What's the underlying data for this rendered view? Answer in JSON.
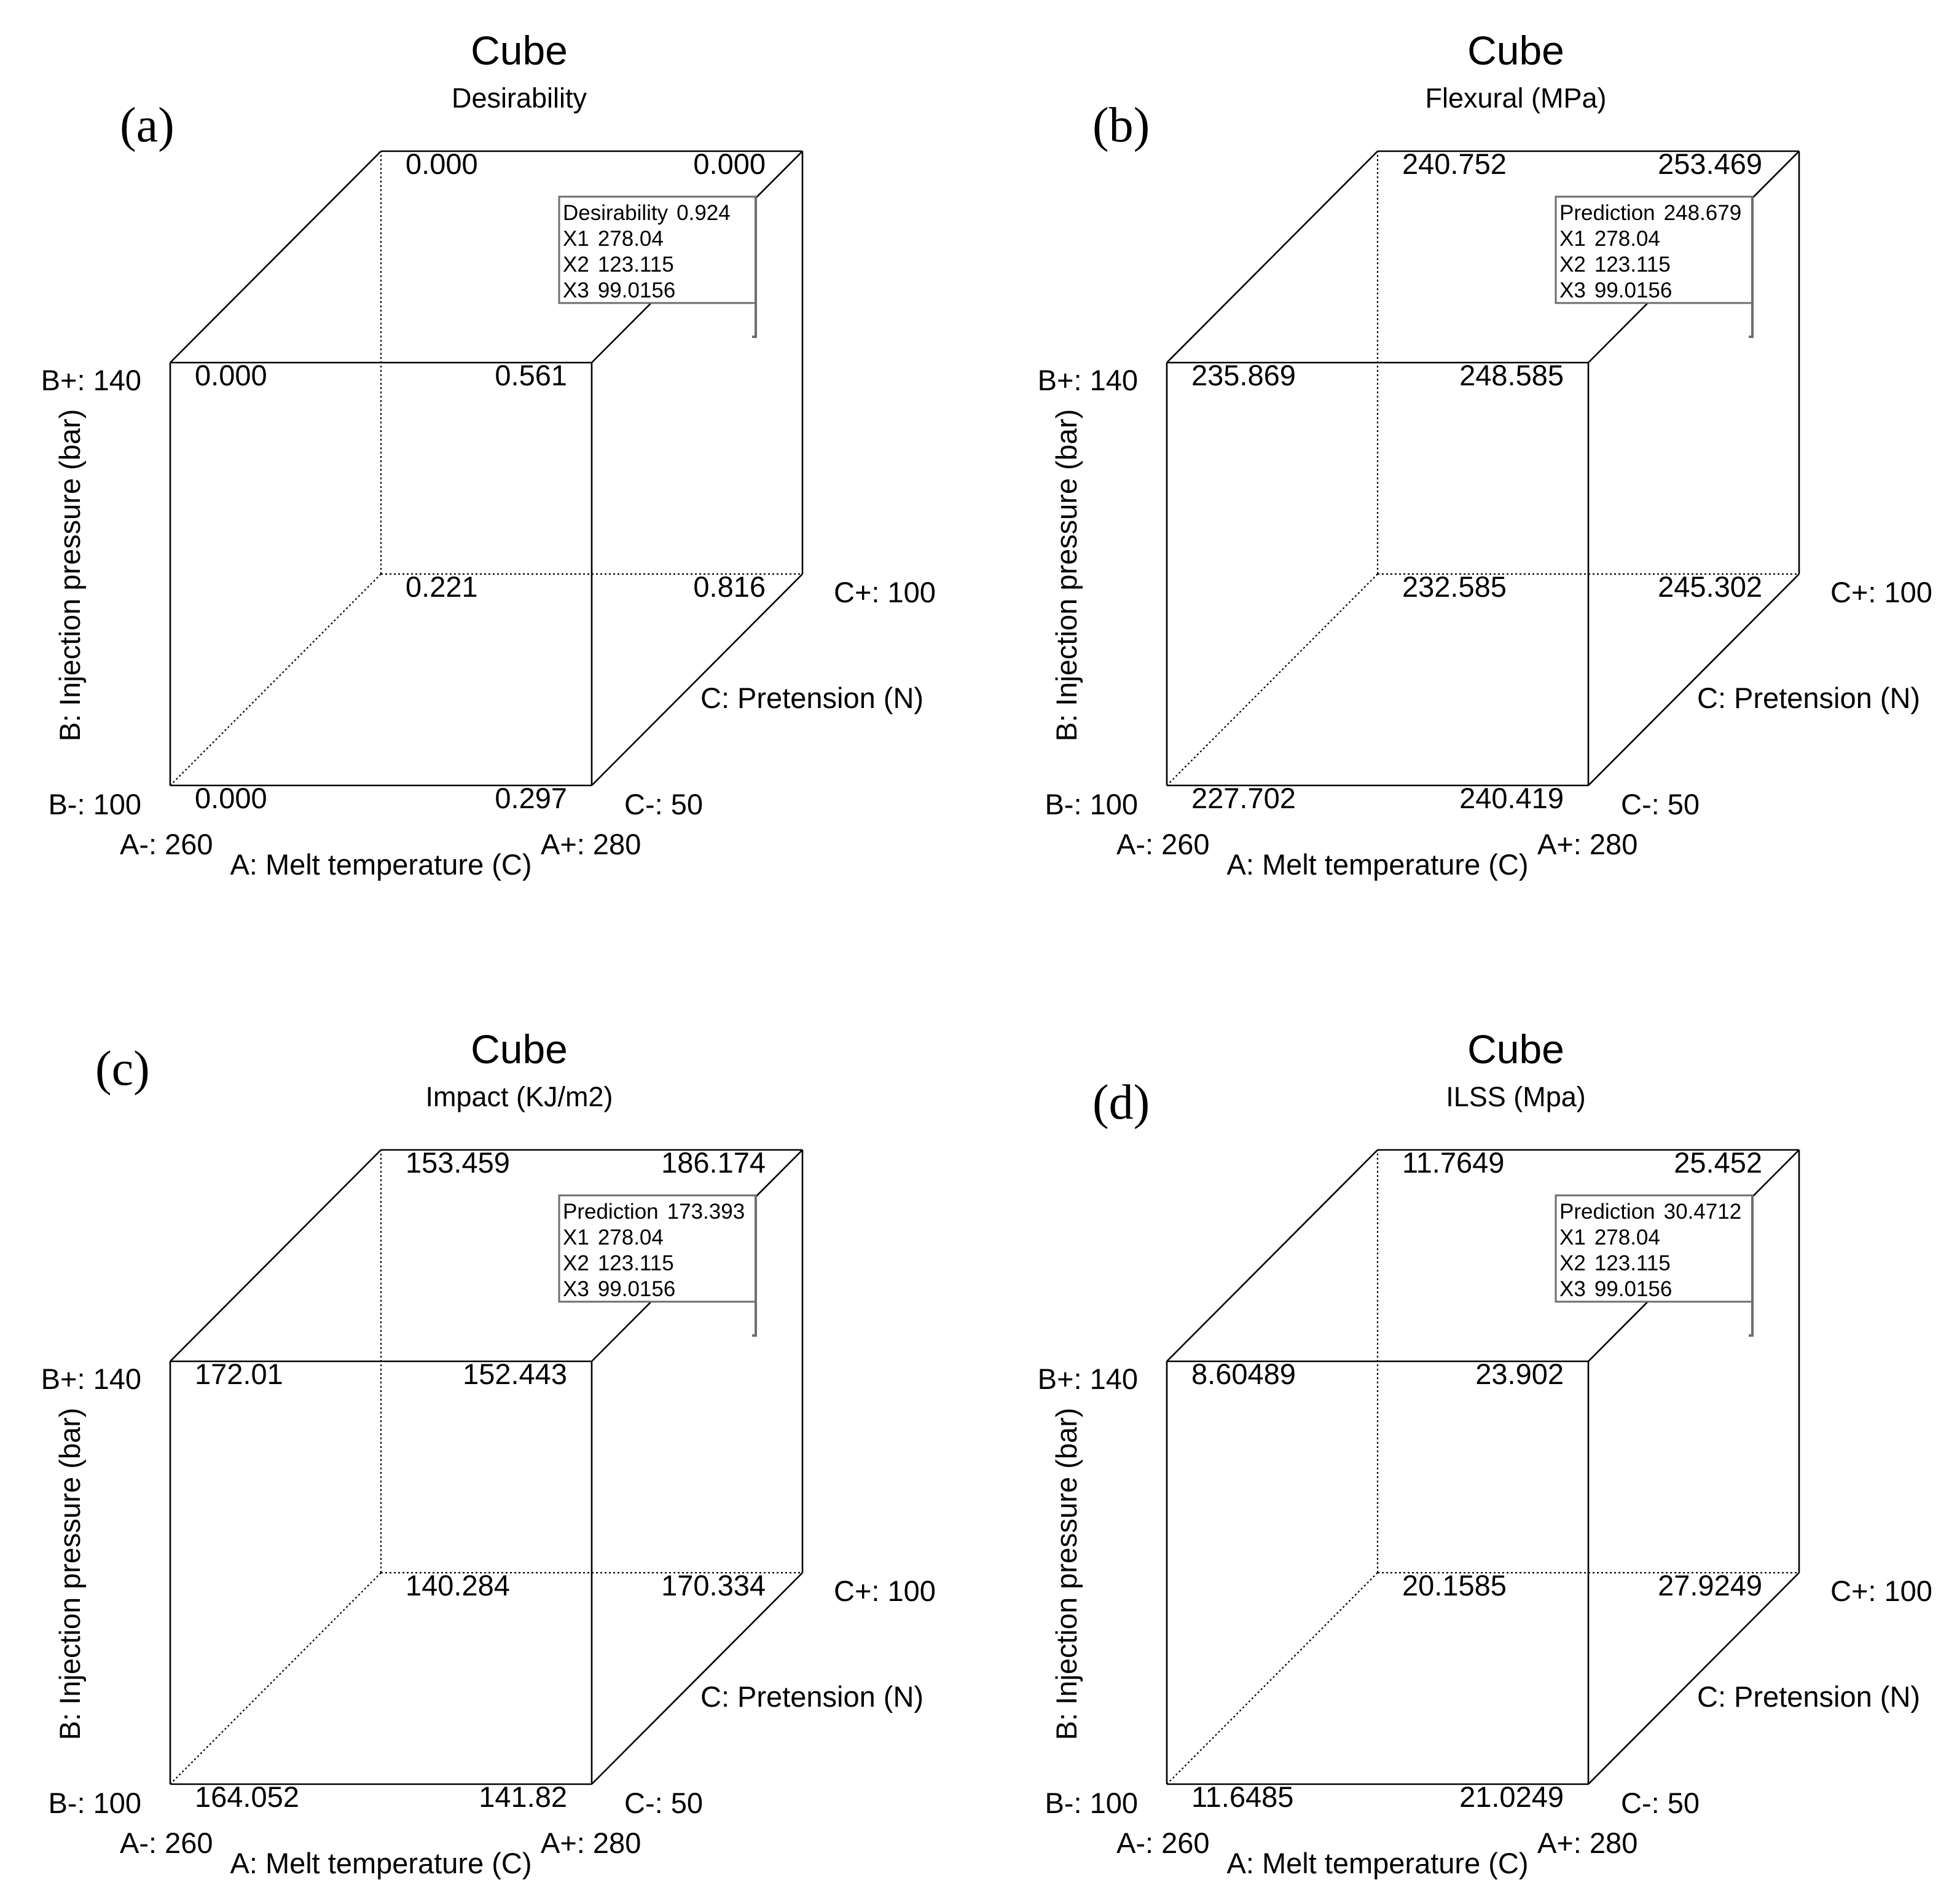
{
  "axis_labels": {
    "a_axis": "A: Melt temperature (C)",
    "b_axis": "B: Injection pressure (bar)",
    "c_axis": "C: Pretension (N)"
  },
  "tick_labels": {
    "a_low": "A-: 260",
    "a_high": "A+: 280",
    "b_low": "B-: 100",
    "b_high": "B+: 140",
    "c_low": "C-: 50",
    "c_high": "C+: 100"
  },
  "chart_data": [
    {
      "type": "cube",
      "panel_label": "(a)",
      "title": "Cube",
      "subtitle": "Desirability",
      "factors": {
        "A": {
          "label": "A: Melt temperature (C)",
          "low": 260,
          "high": 280
        },
        "B": {
          "label": "B: Injection pressure (bar)",
          "low": 100,
          "high": 140
        },
        "C": {
          "label": "C: Pretension (N)",
          "low": 50,
          "high": 100
        }
      },
      "corners": {
        "a_low_b_low_c_low": "0.000",
        "a_high_b_low_c_low": "0.297",
        "a_low_b_high_c_low": "0.000",
        "a_high_b_high_c_low": "0.561",
        "a_low_b_low_c_high": "0.221",
        "a_high_b_low_c_high": "0.816",
        "a_low_b_high_c_high": "0.000",
        "a_high_b_high_c_high": "0.000"
      },
      "prediction": {
        "label": "Desirability",
        "value": "0.924",
        "x1_label": "X1",
        "x1": "278.04",
        "x2_label": "X2",
        "x2": "123.115",
        "x3_label": "X3",
        "x3": "99.0156"
      }
    },
    {
      "type": "cube",
      "panel_label": "(b)",
      "title": "Cube",
      "subtitle": "Flexural (MPa)",
      "factors": {
        "A": {
          "label": "A: Melt temperature (C)",
          "low": 260,
          "high": 280
        },
        "B": {
          "label": "B: Injection pressure (bar)",
          "low": 100,
          "high": 140
        },
        "C": {
          "label": "C: Pretension (N)",
          "low": 50,
          "high": 100
        }
      },
      "corners": {
        "a_low_b_low_c_low": "227.702",
        "a_high_b_low_c_low": "240.419",
        "a_low_b_high_c_low": "235.869",
        "a_high_b_high_c_low": "248.585",
        "a_low_b_low_c_high": "232.585",
        "a_high_b_low_c_high": "245.302",
        "a_low_b_high_c_high": "240.752",
        "a_high_b_high_c_high": "253.469"
      },
      "prediction": {
        "label": "Prediction",
        "value": "248.679",
        "x1_label": "X1",
        "x1": "278.04",
        "x2_label": "X2",
        "x2": "123.115",
        "x3_label": "X3",
        "x3": "99.0156"
      }
    },
    {
      "type": "cube",
      "panel_label": "(c)",
      "title": "Cube",
      "subtitle": "Impact (KJ/m2)",
      "factors": {
        "A": {
          "label": "A: Melt temperature (C)",
          "low": 260,
          "high": 280
        },
        "B": {
          "label": "B: Injection pressure (bar)",
          "low": 100,
          "high": 140
        },
        "C": {
          "label": "C: Pretension (N)",
          "low": 50,
          "high": 100
        }
      },
      "corners": {
        "a_low_b_low_c_low": "164.052",
        "a_high_b_low_c_low": "141.82",
        "a_low_b_high_c_low": "172.01",
        "a_high_b_high_c_low": "152.443",
        "a_low_b_low_c_high": "140.284",
        "a_high_b_low_c_high": "170.334",
        "a_low_b_high_c_high": "153.459",
        "a_high_b_high_c_high": "186.174"
      },
      "prediction": {
        "label": "Prediction",
        "value": "173.393",
        "x1_label": "X1",
        "x1": "278.04",
        "x2_label": "X2",
        "x2": "123.115",
        "x3_label": "X3",
        "x3": "99.0156"
      }
    },
    {
      "type": "cube",
      "panel_label": "(d)",
      "title": "Cube",
      "subtitle": "ILSS (Mpa)",
      "factors": {
        "A": {
          "label": "A: Melt temperature (C)",
          "low": 260,
          "high": 280
        },
        "B": {
          "label": "B: Injection pressure (bar)",
          "low": 100,
          "high": 140
        },
        "C": {
          "label": "C: Pretension (N)",
          "low": 50,
          "high": 100
        }
      },
      "corners": {
        "a_low_b_low_c_low": "11.6485",
        "a_high_b_low_c_low": "21.0249",
        "a_low_b_high_c_low": "8.60489",
        "a_high_b_high_c_low": "23.902",
        "a_low_b_low_c_high": "20.1585",
        "a_high_b_low_c_high": "27.9249",
        "a_low_b_high_c_high": "11.7649",
        "a_high_b_high_c_high": "25.452"
      },
      "prediction": {
        "label": "Prediction",
        "value": "30.4712",
        "x1_label": "X1",
        "x1": "278.04",
        "x2_label": "X2",
        "x2": "123.115",
        "x3_label": "X3",
        "x3": "99.0156"
      }
    }
  ]
}
